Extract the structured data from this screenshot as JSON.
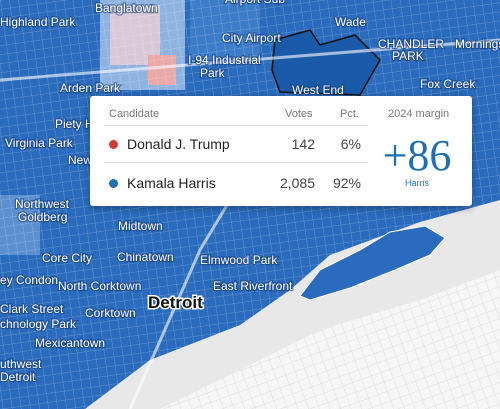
{
  "map": {
    "labels": [
      "Highland Park",
      "Banglatown",
      "Airport Sub",
      "Wade",
      "City Airport",
      "CHANDLER",
      "PARK",
      "Morningside",
      "I-94 Industrial",
      "Park",
      "Fox Creek",
      "West End",
      "Arden Park",
      "Piety Hill",
      "Virginia Park",
      "New",
      "Northwest",
      "Goldberg",
      "Midtown",
      "Core City",
      "Chinatown",
      "Elmwood Park",
      "ey Condon",
      "North Corktown",
      "East Riverfront",
      "Clark Street",
      "chnology Park",
      "Corktown",
      "Mexicantown",
      "uthwest",
      "Detroit"
    ],
    "city": "Detroit"
  },
  "tooltip": {
    "headers": [
      "Candidate",
      "Votes",
      "Pct.",
      "2024 margin"
    ],
    "rows": [
      {
        "candidate": "Donald J. Trump",
        "votes": "142",
        "pct": "6%"
      },
      {
        "candidate": "Kamala Harris",
        "votes": "2,085",
        "pct": "92%"
      }
    ],
    "margin": "+86",
    "winner": "Harris"
  }
}
